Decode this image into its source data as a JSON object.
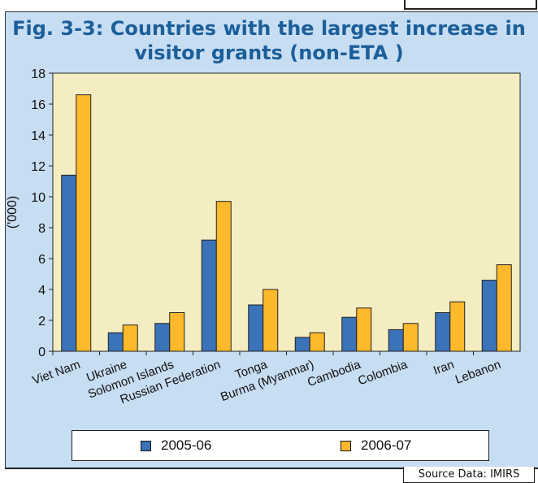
{
  "chart_data": {
    "type": "bar",
    "title": "Fig. 3-3: Countries with the largest increase in visitor grants (non-ETA )",
    "title_lines": [
      "Fig. 3-3: Countries with the largest increase in",
      "visitor grants (non-ETA )"
    ],
    "ylabel": "('000)",
    "xlabel": "",
    "ylim": [
      0,
      18
    ],
    "yticks": [
      0,
      2,
      4,
      6,
      8,
      10,
      12,
      14,
      16,
      18
    ],
    "categories": [
      "Viet Nam",
      "Ukraine",
      "Solomon Islands",
      "Russian Federation",
      "Tonga",
      "Burma (Myanmar)",
      "Cambodia",
      "Colombia",
      "Iran",
      "Lebanon"
    ],
    "series": [
      {
        "name": "2005-06",
        "color": "#3b73b9",
        "values": [
          11.4,
          1.2,
          1.8,
          7.2,
          3.0,
          0.9,
          2.2,
          1.4,
          2.5,
          4.6
        ]
      },
      {
        "name": "2006-07",
        "color": "#fdb92c",
        "values": [
          16.6,
          1.7,
          2.5,
          9.7,
          4.0,
          1.2,
          2.8,
          1.8,
          3.2,
          5.6
        ]
      }
    ],
    "grid": false,
    "legend_position": "bottom",
    "plot_background": "#f4edc2"
  },
  "source_note": "Source Data: IMIRS"
}
